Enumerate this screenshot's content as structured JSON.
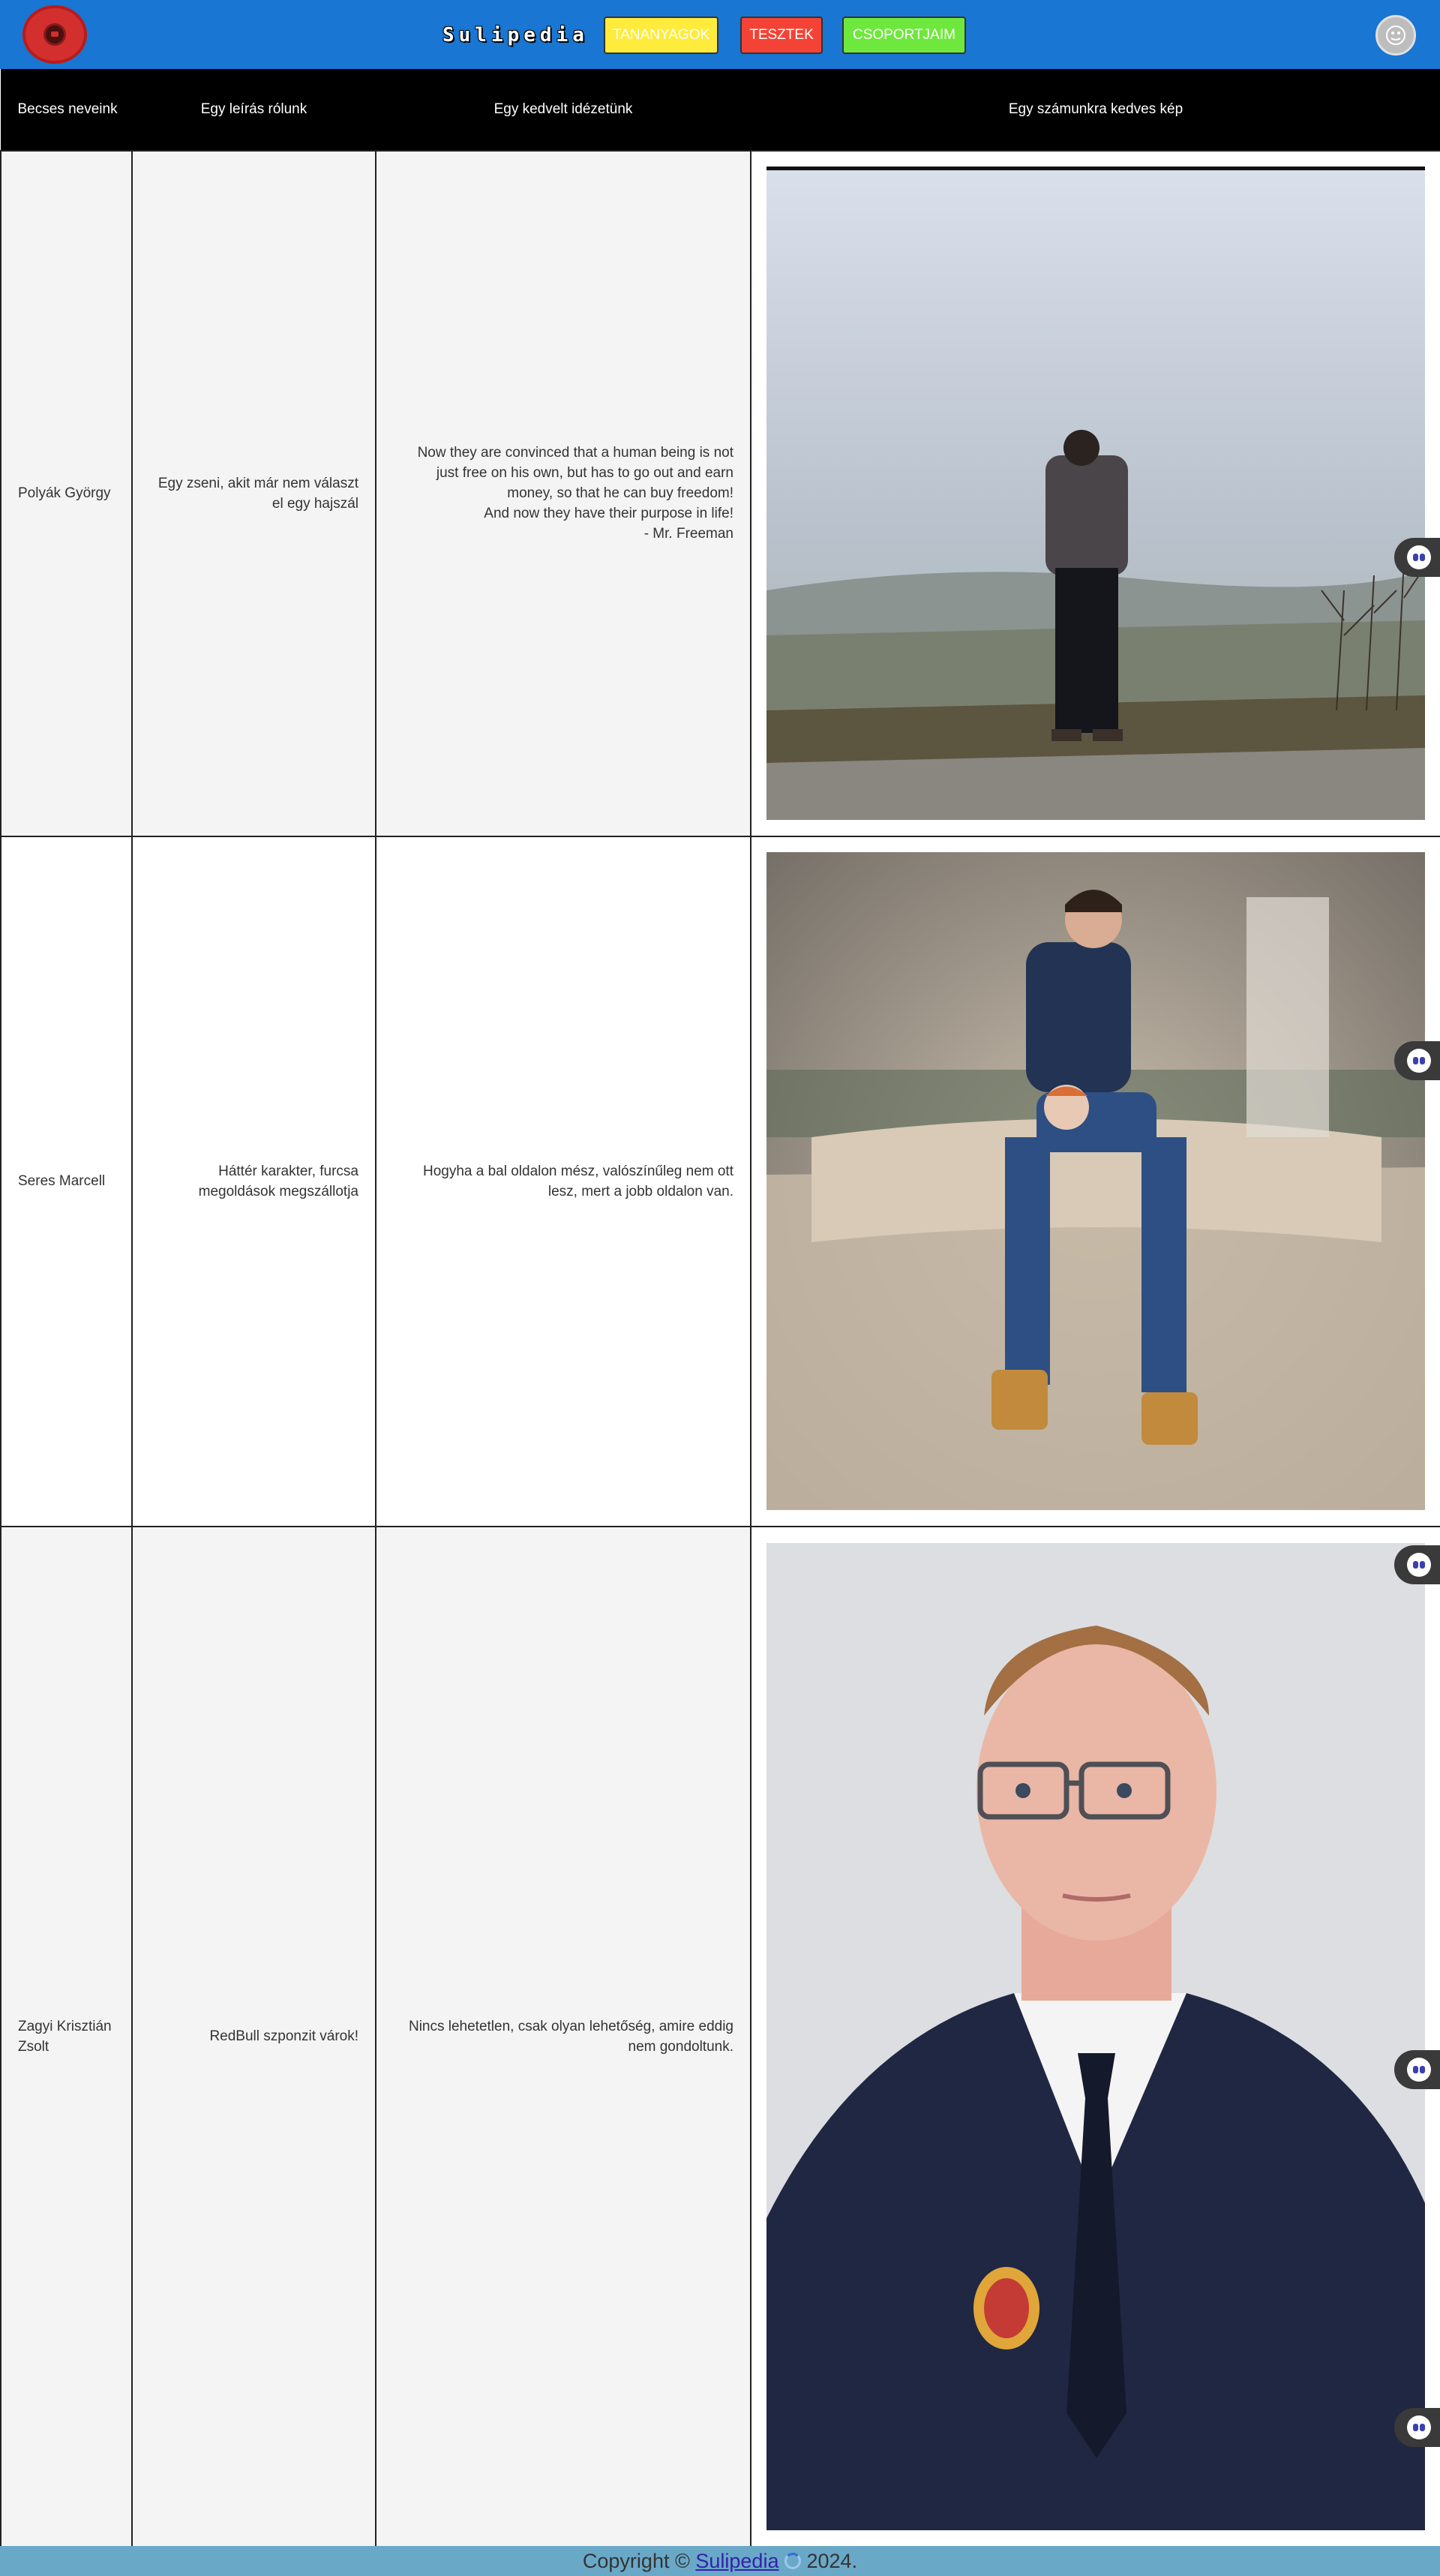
{
  "header": {
    "brand": "Sulipedia",
    "nav": [
      {
        "label": "TANANYAGOK"
      },
      {
        "label": "TESZTEK"
      },
      {
        "label": "CSOPORTJAIM"
      }
    ]
  },
  "table": {
    "columns": {
      "name": "Becses neveink",
      "desc": "Egy leírás rólunk",
      "quote": "Egy kedvelt idézetünk",
      "image": "Egy számunkra kedves kép"
    },
    "rows": [
      {
        "name": "Polyák György",
        "desc": "Egy zseni, akit már nem választ el egy hajszál",
        "quote": "Now they are convinced that a human being is not just free on his own, but has to go out and earn money, so that he can buy freedom!\nAnd now they have their purpose in life!\n- Mr. Freeman"
      },
      {
        "name": "Seres Marcell",
        "desc": "Háttér karakter, furcsa megoldások megszállotja",
        "quote": "Hogyha a bal oldalon mész, valószínűleg nem ott lesz, mert a jobb oldalon van."
      },
      {
        "name": "Zagyi Krisztián Zsolt",
        "desc": "RedBull szponzit várok!",
        "quote": "Nincs lehetetlen, csak olyan lehetőség, amire eddig nem gondoltunk."
      }
    ]
  },
  "footer": {
    "prefix": "Copyright ©",
    "link": "Sulipedia",
    "suffix": "2024."
  },
  "colors": {
    "header_bg": "#1976d2",
    "btn_yellow": "#ffeb3b",
    "btn_red": "#f44336",
    "btn_green": "#6ee83c",
    "footer_bg": "#6aa8c8"
  },
  "icons": [
    "logo-icon",
    "user-avatar-icon",
    "assistant-bot-icon",
    "spinner-icon"
  ]
}
